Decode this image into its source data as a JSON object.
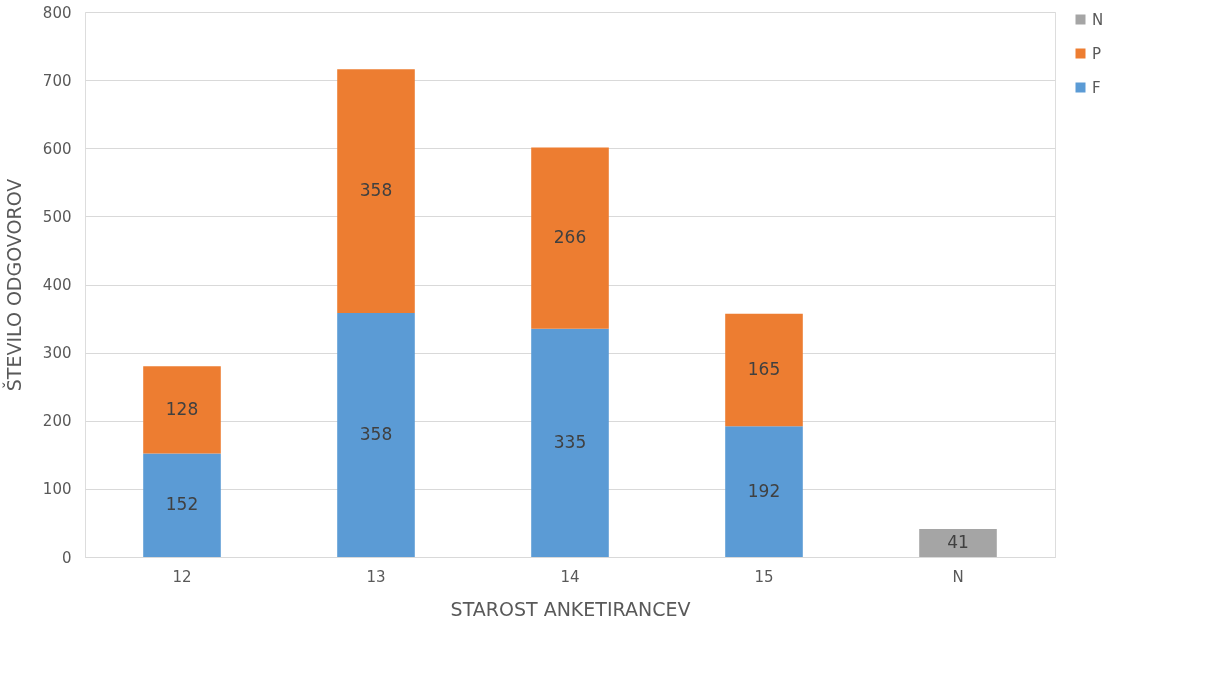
{
  "chart_data": {
    "type": "bar",
    "stacked": true,
    "xlabel": "STAROST ANKETIRANCEV",
    "ylabel": "ŠTEVILO ODGOVOROV",
    "categories": [
      "12",
      "13",
      "14",
      "15",
      "N"
    ],
    "series": [
      {
        "name": "F",
        "color": "#5b9bd5",
        "values": [
          152,
          358,
          335,
          192,
          null
        ]
      },
      {
        "name": "P",
        "color": "#ed7d31",
        "values": [
          128,
          358,
          266,
          165,
          null
        ]
      },
      {
        "name": "N",
        "color": "#a5a5a5",
        "values": [
          null,
          null,
          null,
          null,
          41
        ]
      }
    ],
    "ylim": [
      0,
      800
    ],
    "yticks": [
      0,
      100,
      200,
      300,
      400,
      500,
      600,
      700,
      800
    ],
    "grid": "y",
    "legend": "right",
    "data_labels": true
  }
}
